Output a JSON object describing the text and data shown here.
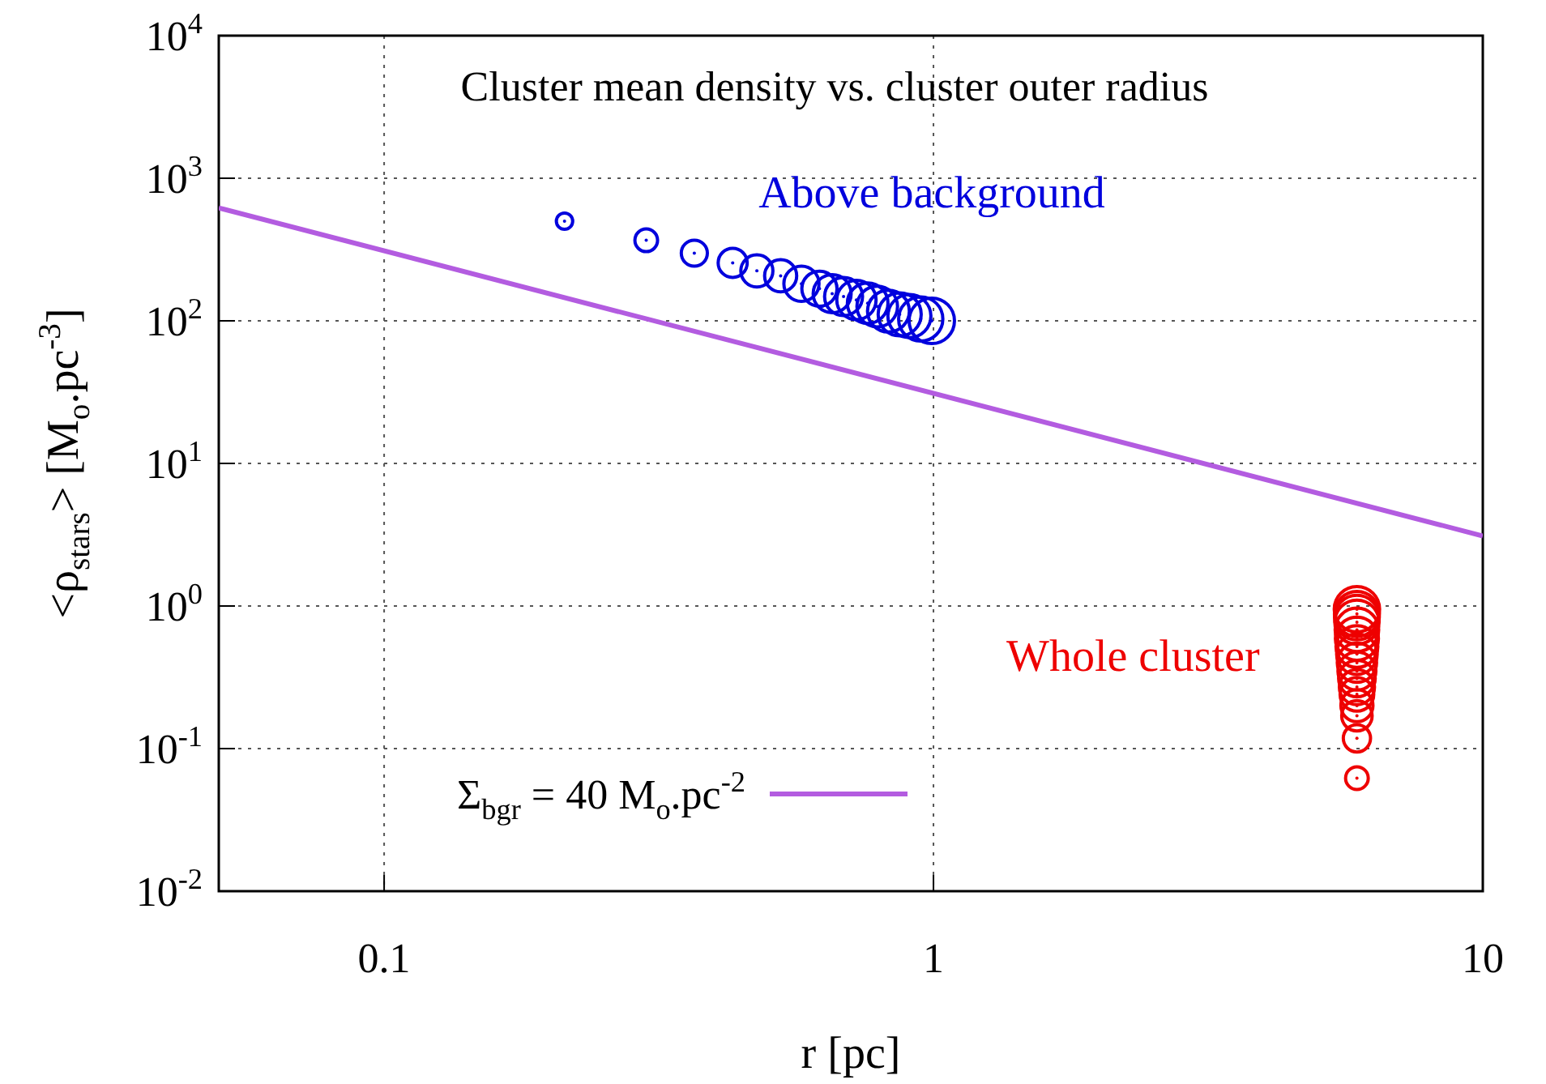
{
  "chart_data": {
    "type": "scatter",
    "title": "Cluster mean density vs. cluster outer radius",
    "xlabel": "r [pc]",
    "ylabel": "<ρ$_{stars}$> [M$_{o}$.pc$^{-3}$]",
    "log": "xy",
    "grid": true,
    "legend": "bottom left",
    "xlim": [
      0.05,
      10
    ],
    "xticks": [
      0.1,
      1,
      10
    ],
    "ylim": [
      0.01,
      10000
    ],
    "yticks": [
      {
        "value": 0.01,
        "label": "10$^{-2}$"
      },
      {
        "value": 0.1,
        "label": "10$^{-1}$"
      },
      {
        "value": 1,
        "label": "10$^{0}$"
      },
      {
        "value": 10,
        "label": "10$^{1}$"
      },
      {
        "value": 100,
        "label": "10$^{2}$"
      },
      {
        "value": 1000,
        "label": "10$^{3}$"
      },
      {
        "value": 10000,
        "label": "10$^{4}$"
      }
    ],
    "series": [
      {
        "name": "Above background",
        "color": "#0000dd",
        "marker": "circle",
        "x": [
          0.213,
          0.3,
          0.367,
          0.431,
          0.477,
          0.527,
          0.575,
          0.62,
          0.654,
          0.686,
          0.724,
          0.759,
          0.79,
          0.828,
          0.868,
          0.904,
          0.948,
          0.993
        ],
        "values": [
          500,
          367,
          298,
          255,
          224,
          207,
          182,
          168,
          155,
          148,
          140,
          133,
          126,
          117,
          111,
          108,
          103,
          100
        ],
        "sizes": [
          0.13,
          0.25,
          0.33,
          0.41,
          0.5,
          0.5,
          0.6,
          0.6,
          0.7,
          0.7,
          0.75,
          0.8,
          0.8,
          0.85,
          0.9,
          0.9,
          0.95,
          1
        ]
      },
      {
        "name": "Whole cluster",
        "color": "#ee0000",
        "marker": "circle",
        "x": [
          5.9,
          5.9,
          5.9,
          5.9,
          5.9,
          5.9,
          5.9,
          5.9,
          5.9,
          5.9,
          5.9,
          5.9,
          5.9,
          5.9,
          5.9,
          5.9,
          5.9
        ],
        "values": [
          0.062,
          0.118,
          0.17,
          0.2,
          0.24,
          0.27,
          0.31,
          0.35,
          0.4,
          0.46,
          0.52,
          0.59,
          0.68,
          0.77,
          0.83,
          0.88,
          0.95
        ],
        "sizes": [
          0.25,
          0.36,
          0.45,
          0.5,
          0.55,
          0.6,
          0.65,
          0.7,
          0.75,
          0.8,
          0.85,
          0.9,
          0.92,
          0.95,
          0.97,
          0.98,
          1
        ]
      },
      {
        "type": "line",
        "name": "Σ$_{bgr}$ = 40 M$_{o}$.pc$^{-2}$",
        "color": "#b35ce0",
        "x": [
          0.05,
          10
        ],
        "values": [
          620,
          3.1
        ],
        "marker": "none",
        "line_style": "solid"
      }
    ]
  }
}
